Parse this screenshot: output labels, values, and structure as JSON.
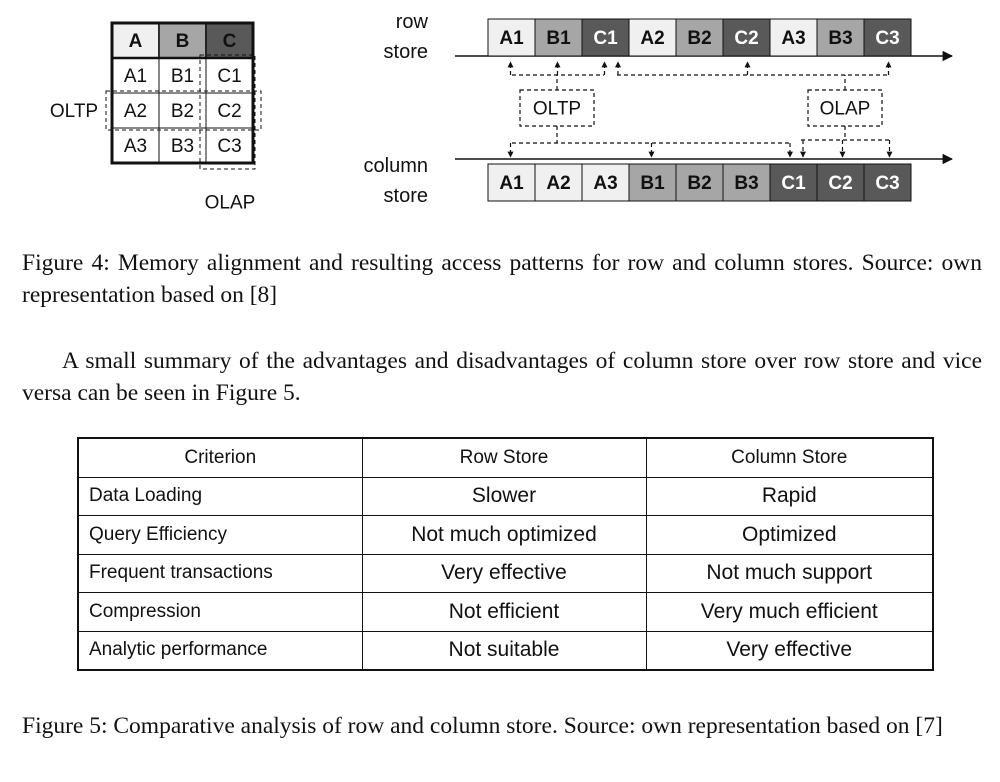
{
  "figure4": {
    "matrix": {
      "headers": [
        "A",
        "B",
        "C"
      ],
      "rows": [
        [
          "A1",
          "B1",
          "C1"
        ],
        [
          "A2",
          "B2",
          "C2"
        ],
        [
          "A3",
          "B3",
          "C3"
        ]
      ],
      "oltp_label": "OLTP",
      "olap_label": "OLAP"
    },
    "row_store": {
      "label_line1": "row",
      "label_line2": "store",
      "cells": [
        "A1",
        "B1",
        "C1",
        "A2",
        "B2",
        "C2",
        "A3",
        "B3",
        "C3"
      ]
    },
    "column_store": {
      "label_line1": "column",
      "label_line2": "store",
      "cells": [
        "A1",
        "A2",
        "A3",
        "B1",
        "B2",
        "B3",
        "C1",
        "C2",
        "C3"
      ]
    },
    "oltp_box": "OLTP",
    "olap_box": "OLAP",
    "colors": {
      "A": "#f0f0f0",
      "B": "#a6a6a6",
      "C": "#595959"
    },
    "caption": "Figure 4:  Memory alignment and resulting access patterns for row and column stores. Source: own representation based on [8]"
  },
  "paragraph": "A small summary of the advantages and disadvantages of column store over row store and vice versa can be seen in Figure 5.",
  "figure5": {
    "headers": [
      "Criterion",
      "Row Store",
      "Column Store"
    ],
    "rows": [
      [
        "Data Loading",
        "Slower",
        "Rapid"
      ],
      [
        "Query Efficiency",
        "Not much optimized",
        "Optimized"
      ],
      [
        "Frequent transactions",
        "Very effective",
        "Not much support"
      ],
      [
        "Compression",
        "Not efficient",
        "Very much efficient"
      ],
      [
        "Analytic performance",
        "Not suitable",
        "Very effective"
      ]
    ],
    "caption": "Figure 5: Comparative analysis of row and column store. Source: own representation based on [7]"
  }
}
